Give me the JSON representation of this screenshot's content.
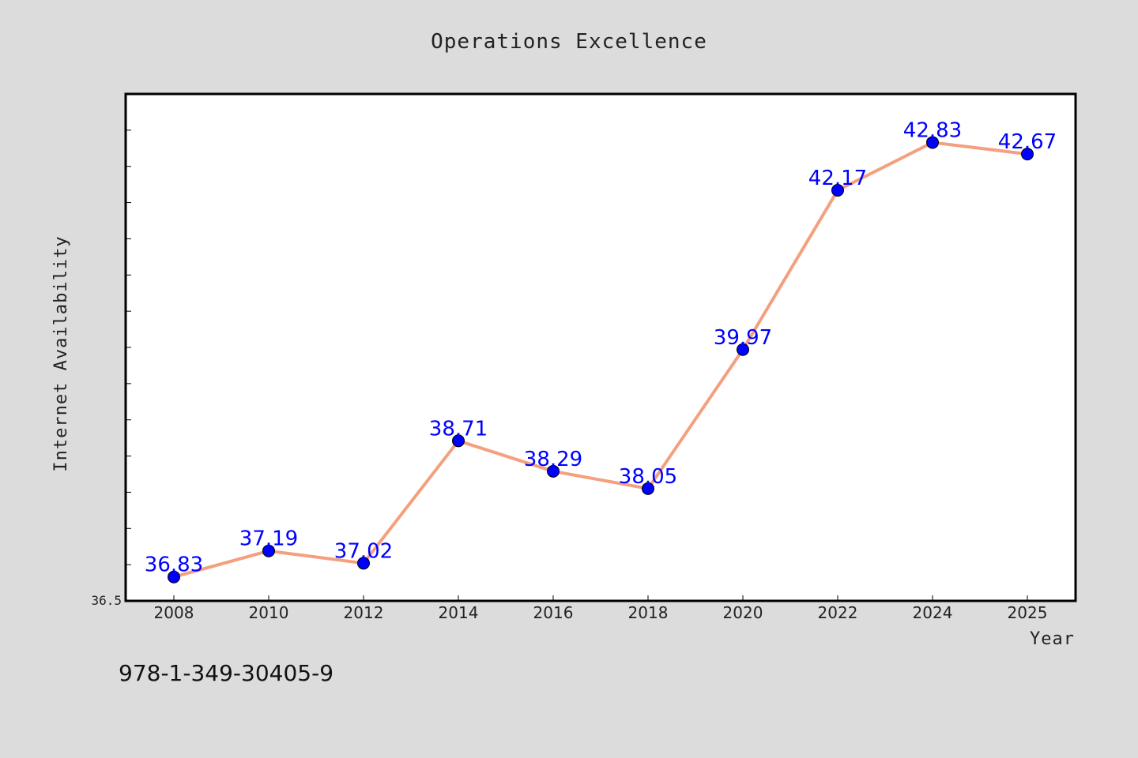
{
  "chart_data": {
    "type": "line",
    "title": "Operations Excellence",
    "xlabel": "Year",
    "ylabel": "Internet Availability",
    "categories": [
      "2008",
      "2010",
      "2012",
      "2014",
      "2016",
      "2018",
      "2020",
      "2022",
      "2024",
      "2025"
    ],
    "series": [
      {
        "values": [
          36.83,
          37.19,
          37.02,
          38.71,
          38.29,
          38.05,
          39.97,
          42.17,
          42.83,
          42.67
        ],
        "line_color": "#f4a07f",
        "marker_color": "#0000ff"
      }
    ],
    "data_labels": [
      "36.83",
      "37.19",
      "37.02",
      "38.71",
      "38.29",
      "38.05",
      "39.97",
      "42.17",
      "42.83",
      "42.67"
    ],
    "yticks_labeled": [
      "36.5"
    ],
    "ylim": [
      36.5,
      43.5
    ],
    "grid": false,
    "legend": "none",
    "label_color": "#0000ff"
  },
  "footer": {
    "code": "978-1-349-30405-9"
  }
}
